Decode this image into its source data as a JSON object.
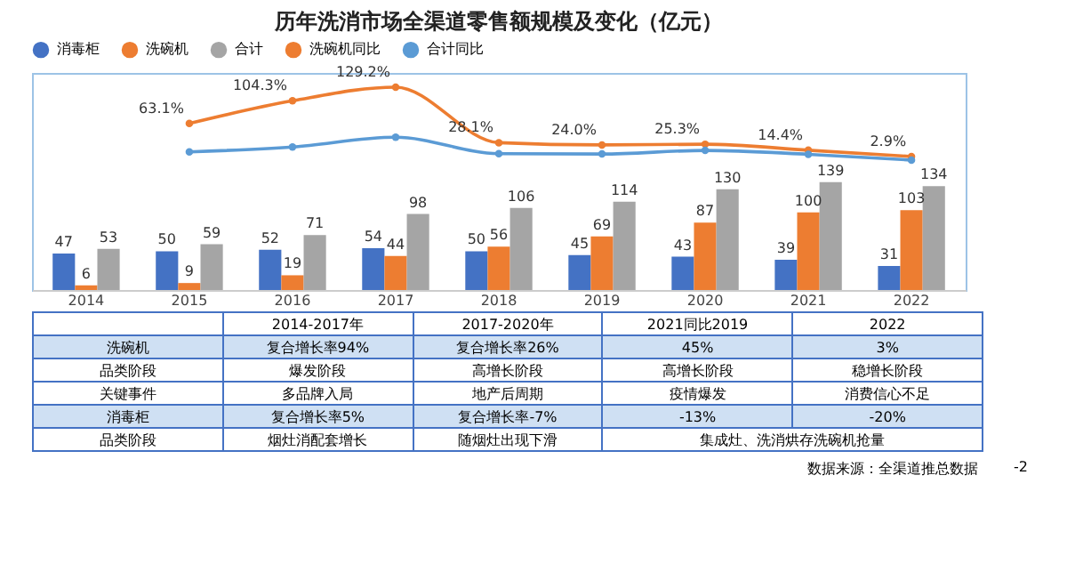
{
  "chart_data": {
    "type": "bar",
    "title": "历年洗消市场全渠道零售额规模及变化（亿元）",
    "categories": [
      "2014",
      "2015",
      "2016",
      "2017",
      "2018",
      "2019",
      "2020",
      "2021",
      "2022"
    ],
    "series": [
      {
        "name": "消毒柜",
        "color": "#4472c4",
        "values": [
          47,
          50,
          52,
          54,
          50,
          45,
          43,
          39,
          31
        ],
        "value_labels": [
          "47",
          "50",
          "52",
          "54",
          "50",
          "45",
          "43",
          "39",
          "31"
        ]
      },
      {
        "name": "洗碗机",
        "color": "#ed7d31",
        "values": [
          6,
          9,
          19,
          44,
          56,
          69,
          87,
          100,
          103
        ],
        "value_labels": [
          "6",
          "9",
          "19",
          "44",
          "56",
          "69",
          "87",
          "100",
          "103"
        ]
      },
      {
        "name": "合计",
        "color": "#a5a5a5",
        "values": [
          53,
          59,
          71,
          98,
          106,
          114,
          130,
          139,
          134
        ],
        "value_labels": [
          "53",
          "59",
          "71",
          "98",
          "106",
          "114",
          "130",
          "139",
          "134"
        ]
      },
      {
        "name": "洗碗机同比",
        "type": "line",
        "axis": "y2",
        "color": "#ed7d31",
        "values": [
          null,
          63.1,
          104.3,
          129.2,
          28.1,
          24.0,
          25.3,
          14.4,
          2.9
        ],
        "value_labels": [
          null,
          "63.1%",
          "104.3%",
          "129.2%",
          "28.1%",
          "24.0%",
          "25.3%",
          "14.4%",
          "2.9%"
        ]
      },
      {
        "name": "合计同比",
        "type": "line",
        "axis": "y2",
        "color": "#5b9bd5",
        "values": [
          null,
          11.3,
          20.3,
          38.0,
          8.2,
          7.5,
          14.0,
          6.9,
          -3.6
        ]
      }
    ],
    "ylim": [
      0,
      280
    ],
    "y2lim": [
      -240,
      155
    ],
    "tick_labels": "x",
    "marker": "circle",
    "legend": "top",
    "grid": false,
    "annotations": [
      "2014-2017年",
      "2017-2020年",
      "2021同比2019",
      "2022",
      "洗碗机",
      "复合增长率94%",
      "复合增长率26%",
      "45%",
      "3%",
      "品类阶段",
      "爆发阶段",
      "高增长阶段",
      "高增长阶段",
      "稳增长阶段",
      "关键事件",
      "多品牌入局",
      "地产后周期",
      "疫情爆发",
      "消费信心不足",
      "消毒柜",
      "复合增长率5%",
      "复合增长率-7%",
      "-13%",
      "-20%",
      "品类阶段",
      "烟灶消配套增长",
      "随烟灶出现下滑",
      "集成灶、洗消烘存洗碗机抢量",
      "数据来源：全渠道推总数据",
      "-2"
    ]
  }
}
